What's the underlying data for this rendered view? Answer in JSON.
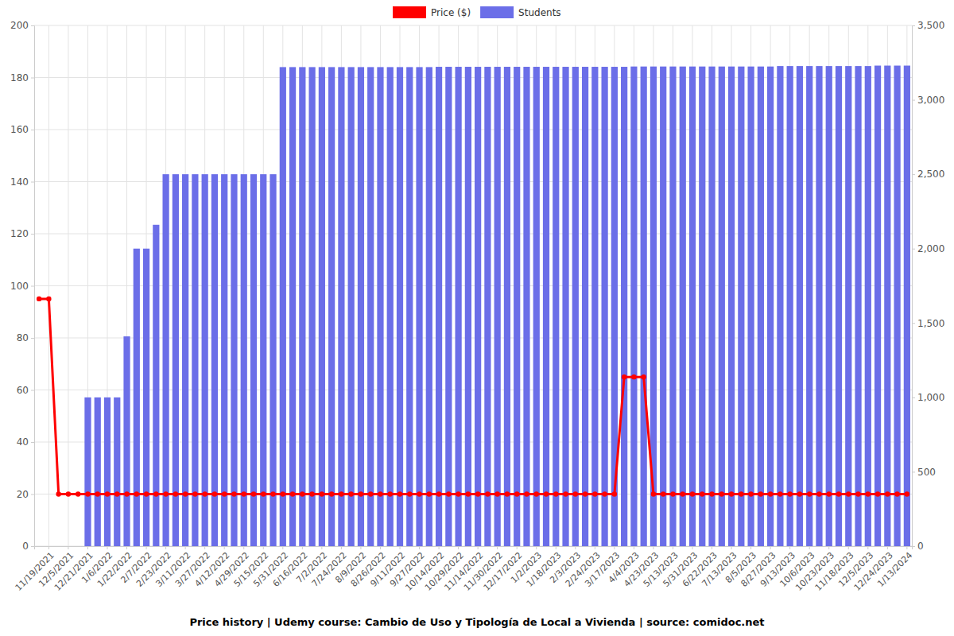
{
  "chart_data": {
    "type": "bar",
    "title": "Price history | Udemy course: Cambio de Uso y Tipología de Local a Vivienda | source: comidoc.net",
    "categories": [
      null,
      "11/19/2021",
      null,
      "12/5/2021",
      null,
      "12/21/2021",
      null,
      "1/6/2022",
      null,
      "1/22/2022",
      null,
      "2/7/2022",
      null,
      "2/23/2022",
      null,
      "3/11/2022",
      null,
      "3/27/2022",
      null,
      "4/12/2022",
      null,
      "4/29/2022",
      null,
      "5/15/2022",
      null,
      "5/31/2022",
      null,
      "6/16/2022",
      null,
      "7/2/2022",
      null,
      "7/24/2022",
      null,
      "8/9/2022",
      null,
      "8/26/2022",
      null,
      "9/11/2022",
      null,
      "9/27/2022",
      null,
      "10/14/2022",
      null,
      "10/29/2022",
      null,
      "11/14/2022",
      null,
      "11/30/2022",
      null,
      "12/17/2022",
      null,
      "1/2/2023",
      null,
      "1/18/2023",
      null,
      "2/3/2023",
      null,
      "2/24/2023",
      null,
      "3/17/2023",
      null,
      "4/4/2023",
      null,
      "4/23/2023",
      null,
      "5/13/2023",
      null,
      "5/31/2023",
      null,
      "6/22/2023",
      null,
      "7/13/2023",
      null,
      "8/5/2023",
      null,
      "8/27/2023",
      null,
      "9/13/2023",
      null,
      "10/6/2023",
      null,
      "10/23/2023",
      null,
      "11/18/2023",
      null,
      "12/5/2023",
      null,
      "12/24/2023",
      null,
      "1/13/2024"
    ],
    "series": [
      {
        "name": "Price ($)",
        "type": "line",
        "color": "#ff0000",
        "marker": "circle",
        "values": [
          95,
          95,
          20,
          20,
          20,
          20,
          20,
          20,
          20,
          20,
          20,
          20,
          20,
          20,
          20,
          20,
          20,
          20,
          20,
          20,
          20,
          20,
          20,
          20,
          20,
          20,
          20,
          20,
          20,
          20,
          20,
          20,
          20,
          20,
          20,
          20,
          20,
          20,
          20,
          20,
          20,
          20,
          20,
          20,
          20,
          20,
          20,
          20,
          20,
          20,
          20,
          20,
          20,
          20,
          20,
          20,
          20,
          20,
          20,
          20,
          65,
          65,
          65,
          20,
          20,
          20,
          20,
          20,
          20,
          20,
          20,
          20,
          20,
          20,
          20,
          20,
          20,
          20,
          20,
          20,
          20,
          20,
          20,
          20,
          20,
          20,
          20,
          20,
          20,
          20
        ]
      },
      {
        "name": "Students",
        "type": "bar",
        "color": "#6b6ee8",
        "axis": "y2",
        "values": [
          null,
          null,
          null,
          null,
          null,
          1000,
          1000,
          1000,
          1000,
          1410,
          2000,
          2000,
          2160,
          2500,
          2500,
          2500,
          2500,
          2500,
          2500,
          2500,
          2500,
          2500,
          2500,
          2500,
          2500,
          3220,
          3220,
          3220,
          3220,
          3220,
          3220,
          3220,
          3220,
          3220,
          3220,
          3220,
          3220,
          3220,
          3220,
          3220,
          3220,
          3222,
          3222,
          3222,
          3222,
          3222,
          3222,
          3222,
          3222,
          3222,
          3222,
          3222,
          3222,
          3222,
          3222,
          3222,
          3222,
          3222,
          3222,
          3222,
          3222,
          3224,
          3224,
          3224,
          3224,
          3224,
          3224,
          3224,
          3224,
          3224,
          3224,
          3224,
          3224,
          3224,
          3224,
          3224,
          3227,
          3227,
          3227,
          3227,
          3227,
          3227,
          3227,
          3227,
          3227,
          3227,
          3230,
          3230,
          3230,
          3230
        ]
      }
    ],
    "ylim": [
      0,
      200
    ],
    "yticks": [
      0,
      20,
      40,
      60,
      80,
      100,
      120,
      140,
      160,
      180,
      200
    ],
    "y2lim": [
      0,
      3500
    ],
    "y2ticks": [
      0,
      500,
      {
        "value": 1000,
        "label": "1,000"
      },
      {
        "value": 1500,
        "label": "1,500"
      },
      {
        "value": 2000,
        "label": "2,000"
      },
      {
        "value": 2500,
        "label": "2,500"
      },
      {
        "value": 3000,
        "label": "3,000"
      },
      {
        "value": 3500,
        "label": "3,500"
      }
    ],
    "grid": true,
    "legend": "top"
  }
}
